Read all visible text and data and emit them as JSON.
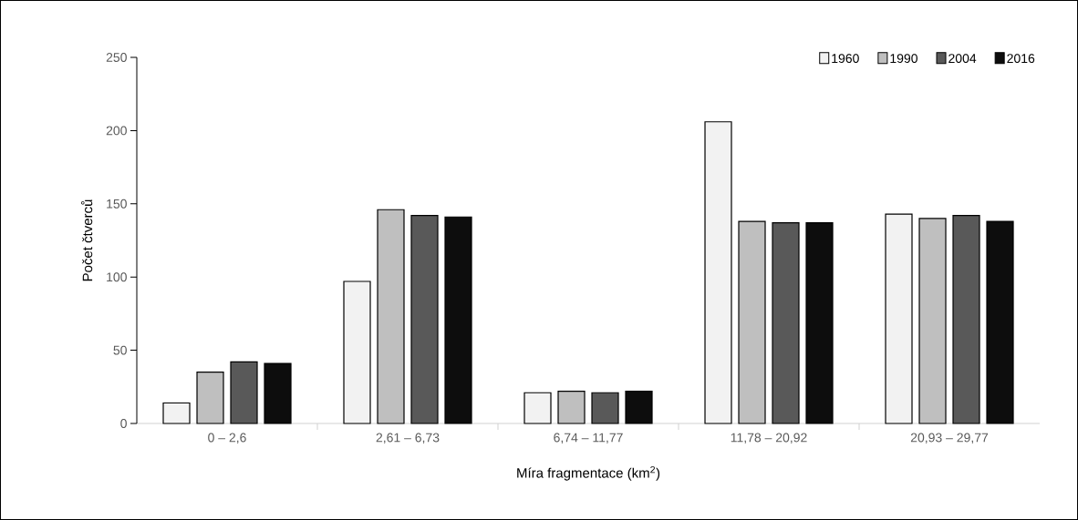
{
  "chart_data": {
    "type": "bar",
    "xlabel": "Míra fragmentace (km$^{2}$)",
    "ylabel": "Počet čtverců",
    "categories": [
      "0 – 2,6",
      "2,61 – 6,73",
      "6,74 – 11,77",
      "11,78 – 20,92",
      "20,93 – 29,77"
    ],
    "series": [
      {
        "name": "1960",
        "color": "#f2f2f2",
        "values": [
          14,
          97,
          21,
          206,
          143
        ]
      },
      {
        "name": "1990",
        "color": "#bfbfbf",
        "values": [
          35,
          146,
          22,
          138,
          140
        ]
      },
      {
        "name": "2004",
        "color": "#595959",
        "values": [
          42,
          142,
          21,
          137,
          142
        ]
      },
      {
        "name": "2016",
        "color": "#0d0d0d",
        "values": [
          41,
          141,
          22,
          137,
          138
        ]
      }
    ],
    "ylim": [
      0,
      250
    ],
    "yticks": [
      0,
      50,
      100,
      150,
      200,
      250
    ],
    "legend": "top right"
  }
}
